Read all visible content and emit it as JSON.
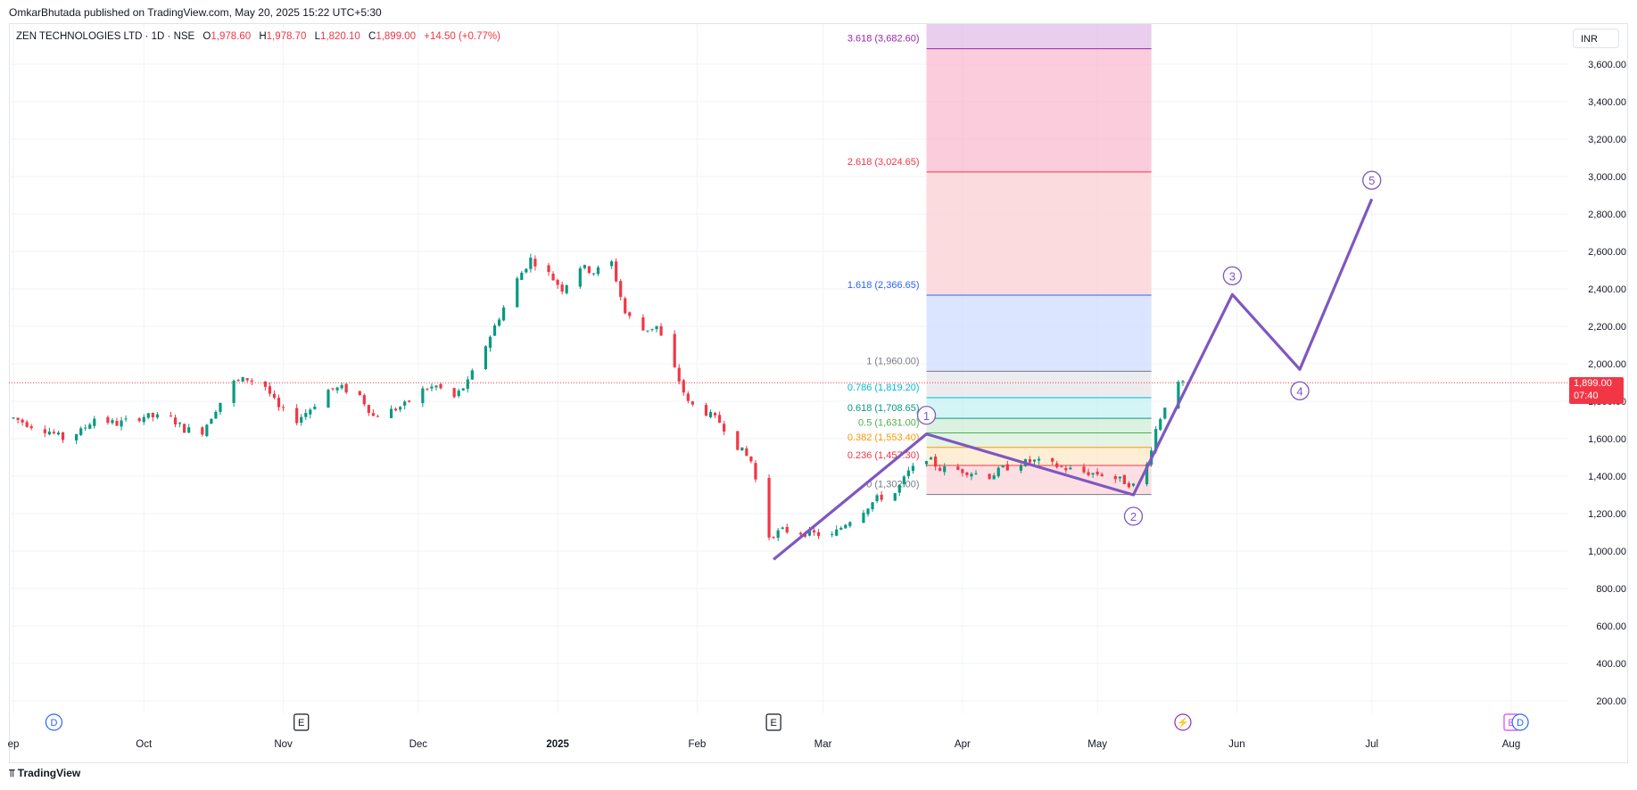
{
  "header": {
    "publisher": "OmkarBhutada published on TradingView.com, May 20, 2025 15:22 UTC+5:30"
  },
  "legend": {
    "symbol": "ZEN TECHNOLOGIES LTD · 1D · NSE",
    "open_label": "O",
    "open": "1,978.60",
    "high_label": "H",
    "high": "1,978.70",
    "low_label": "L",
    "low": "1,820.10",
    "close_label": "C",
    "close": "1,899.00",
    "change": "+14.50 (+0.77%)"
  },
  "currency": "INR",
  "price_tag": {
    "price": "1,899.00",
    "countdown": "07:40"
  },
  "footer": {
    "logo": "TradingView"
  },
  "colors": {
    "up": "#089981",
    "down": "#f23645",
    "wave": "#7e57c2",
    "grid": "#f0f3fa"
  },
  "chart_data": {
    "type": "candlestick",
    "title": "ZEN TECHNOLOGIES LTD · 1D · NSE",
    "ylim": [
      100,
      3800
    ],
    "y_ticks": [
      200,
      400,
      600,
      800,
      1000,
      1200,
      1400,
      1600,
      1800,
      2000,
      2200,
      2400,
      2600,
      2800,
      3000,
      3200,
      3400,
      3600
    ],
    "y_tick_labels": [
      "200.00",
      "400.00",
      "600.00",
      "800.00",
      "1,000.00",
      "1,200.00",
      "1,400.00",
      "1,600.00",
      "1,800.00",
      "2,000.00",
      "2,200.00",
      "2,400.00",
      "2,600.00",
      "2,800.00",
      "3,000.00",
      "3,200.00",
      "3,400.00",
      "3,600.00"
    ],
    "x_labels": [
      {
        "label": "ep",
        "date": "2024-09-02"
      },
      {
        "label": "Oct",
        "date": "2024-10-01"
      },
      {
        "label": "Nov",
        "date": "2024-11-01"
      },
      {
        "label": "Dec",
        "date": "2024-12-01"
      },
      {
        "label": "2025",
        "date": "2025-01-01"
      },
      {
        "label": "Feb",
        "date": "2025-02-01"
      },
      {
        "label": "Mar",
        "date": "2025-03-01"
      },
      {
        "label": "Apr",
        "date": "2025-04-01"
      },
      {
        "label": "May",
        "date": "2025-05-01"
      },
      {
        "label": "Jun",
        "date": "2025-06-01"
      },
      {
        "label": "Jul",
        "date": "2025-07-01"
      },
      {
        "label": "Aug",
        "date": "2025-08-01"
      }
    ],
    "current_price": 1899.0,
    "price_path": [
      [
        "2024-09-02",
        1710
      ],
      [
        "2024-09-06",
        1670
      ],
      [
        "2024-09-10",
        1640
      ],
      [
        "2024-09-13",
        1600
      ],
      [
        "2024-09-17",
        1640
      ],
      [
        "2024-09-20",
        1710
      ],
      [
        "2024-09-25",
        1680
      ],
      [
        "2024-10-01",
        1720
      ],
      [
        "2024-10-07",
        1710
      ],
      [
        "2024-10-10",
        1650
      ],
      [
        "2024-10-14",
        1640
      ],
      [
        "2024-10-17",
        1760
      ],
      [
        "2024-10-21",
        1900
      ],
      [
        "2024-10-24",
        1920
      ],
      [
        "2024-10-28",
        1880
      ],
      [
        "2024-10-31",
        1760
      ],
      [
        "2024-11-04",
        1700
      ],
      [
        "2024-11-07",
        1760
      ],
      [
        "2024-11-11",
        1860
      ],
      [
        "2024-11-14",
        1870
      ],
      [
        "2024-11-18",
        1830
      ],
      [
        "2024-11-21",
        1720
      ],
      [
        "2024-11-25",
        1750
      ],
      [
        "2024-11-28",
        1780
      ],
      [
        "2024-12-02",
        1860
      ],
      [
        "2024-12-05",
        1880
      ],
      [
        "2024-12-09",
        1820
      ],
      [
        "2024-12-12",
        1900
      ],
      [
        "2024-12-16",
        2100
      ],
      [
        "2024-12-19",
        2250
      ],
      [
        "2024-12-23",
        2450
      ],
      [
        "2024-12-26",
        2560
      ],
      [
        "2024-12-30",
        2480
      ],
      [
        "2025-01-02",
        2400
      ],
      [
        "2025-01-06",
        2520
      ],
      [
        "2025-01-09",
        2490
      ],
      [
        "2025-01-13",
        2540
      ],
      [
        "2025-01-16",
        2270
      ],
      [
        "2025-01-20",
        2180
      ],
      [
        "2025-01-23",
        2200
      ],
      [
        "2025-01-27",
        1970
      ],
      [
        "2025-01-30",
        1790
      ],
      [
        "2025-02-03",
        1740
      ],
      [
        "2025-02-06",
        1690
      ],
      [
        "2025-02-10",
        1560
      ],
      [
        "2025-02-13",
        1480
      ],
      [
        "2025-02-17",
        1080
      ],
      [
        "2025-02-20",
        1110
      ],
      [
        "2025-03-03",
        1080
      ],
      [
        "2025-03-06",
        1150
      ],
      [
        "2025-03-10",
        1220
      ],
      [
        "2025-03-13",
        1280
      ],
      [
        "2025-03-17",
        1310
      ],
      [
        "2025-03-20",
        1420
      ],
      [
        "2025-03-24",
        1500
      ],
      [
        "2025-03-27",
        1440
      ],
      [
        "2025-04-01",
        1430
      ],
      [
        "2025-04-07",
        1400
      ],
      [
        "2025-04-10",
        1440
      ],
      [
        "2025-04-14",
        1470
      ],
      [
        "2025-04-17",
        1480
      ],
      [
        "2025-04-21",
        1460
      ],
      [
        "2025-04-24",
        1440
      ],
      [
        "2025-04-28",
        1420
      ],
      [
        "2025-05-02",
        1410
      ],
      [
        "2025-05-06",
        1380
      ],
      [
        "2025-05-09",
        1350
      ],
      [
        "2025-05-12",
        1460
      ],
      [
        "2025-05-14",
        1650
      ],
      [
        "2025-05-16",
        1780
      ],
      [
        "2025-05-19",
        1885
      ],
      [
        "2025-05-20",
        1899
      ]
    ],
    "wave_labels": [
      {
        "label": "1",
        "date": "2025-03-24",
        "price": 1625
      },
      {
        "label": "2",
        "date": "2025-05-09",
        "price": 1300
      },
      {
        "label": "3",
        "date": "2025-05-31",
        "price": 2370
      },
      {
        "label": "4",
        "date": "2025-06-15",
        "price": 1970
      },
      {
        "label": "5",
        "date": "2025-07-01",
        "price": 2880
      }
    ],
    "wave_path": [
      [
        "2025-02-18",
        955
      ],
      [
        "2025-03-24",
        1625
      ],
      [
        "2025-05-09",
        1300
      ],
      [
        "2025-05-31",
        2370
      ],
      [
        "2025-06-15",
        1970
      ],
      [
        "2025-07-01",
        2880
      ]
    ],
    "fib_range": {
      "start": "2025-03-24",
      "end": "2025-05-13"
    },
    "fib_levels": [
      {
        "label": "3.618 (3,682.60)",
        "level": 3682.6,
        "line": "#9c27b0",
        "text": "#9c27b0",
        "fill": "#e1bee7"
      },
      {
        "label": "2.618 (3,024.65)",
        "level": 3024.65,
        "line": "#f23645",
        "text": "#f23645",
        "fill": "#f8bbd0"
      },
      {
        "label": "1.618 (2,366.65)",
        "level": 2366.65,
        "line": "#2962ff",
        "text": "#2962ff",
        "fill": "#fbcfd4"
      },
      {
        "label": "1 (1,960.00)",
        "level": 1960.0,
        "line": "#787b86",
        "text": "#787b86",
        "fill": "#cfdcff"
      },
      {
        "label": "0.786 (1,819.20)",
        "level": 1819.2,
        "line": "#00bcd4",
        "text": "#00bcd4",
        "fill": "#e6e6ea"
      },
      {
        "label": "0.618 (1,708.65)",
        "level": 1708.65,
        "line": "#089981",
        "text": "#089981",
        "fill": "#c6f0f2"
      },
      {
        "label": "0.5 (1,631.00)",
        "level": 1631.0,
        "line": "#4caf50",
        "text": "#4caf50",
        "fill": "#d0ecd5"
      },
      {
        "label": "0.382 (1,553.40)",
        "level": 1553.4,
        "line": "#ff9800",
        "text": "#ff9800",
        "fill": "#d9efdb"
      },
      {
        "label": "0.236 (1,457.30)",
        "level": 1457.3,
        "line": "#f23645",
        "text": "#f23645",
        "fill": "#fde8c8"
      },
      {
        "label": "0 (1,302.00)",
        "level": 1302.0,
        "line": "#787b86",
        "text": "#787b86",
        "fill": "#fbd4d8"
      }
    ],
    "event_markers": [
      {
        "date": "2024-09-11",
        "label": "D",
        "kind": "dividend"
      },
      {
        "date": "2024-11-05",
        "label": "E",
        "kind": "earnings"
      },
      {
        "date": "2025-02-18",
        "label": "E",
        "kind": "earnings"
      },
      {
        "date": "2025-05-20",
        "label": "⚡",
        "kind": "split"
      },
      {
        "date": "2025-08-01",
        "label": "E",
        "kind": "earnings-future"
      },
      {
        "date": "2025-08-03",
        "label": "D",
        "kind": "dividend-future"
      }
    ]
  }
}
